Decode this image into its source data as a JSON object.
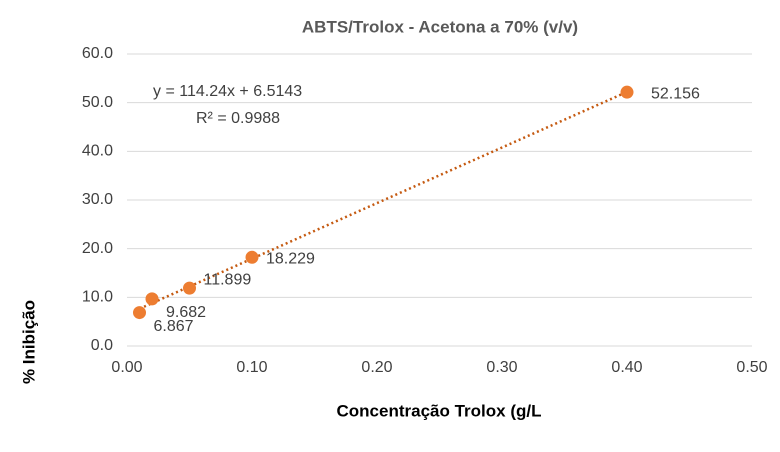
{
  "chart_data": {
    "type": "scatter",
    "title": "ABTS/Trolox - Acetona a 70% (v/v)",
    "x_label": "Concentração Trolox (g/L",
    "y_label": "% Inibição",
    "annotations": [
      "y = 114.24x + 6.5143",
      "R² = 0.9988"
    ],
    "series": [
      {
        "name": "ABTS/Trolox",
        "color": "#ed7d31",
        "x": [
          0.01,
          0.02,
          0.05,
          0.1,
          0.4
        ],
        "values": [
          6.867,
          9.682,
          11.899,
          18.229,
          52.156
        ]
      }
    ],
    "trendline_color": "#c55a11",
    "xlim": [
      0,
      0.5
    ],
    "xticks": [
      {
        "value": 0,
        "label": "0.00"
      },
      {
        "value": 0.1,
        "label": "0.10"
      },
      {
        "value": 0.2,
        "label": "0.20"
      },
      {
        "value": 0.3,
        "label": "0.30"
      },
      {
        "value": 0.4,
        "label": "0.40"
      },
      {
        "value": 0.5,
        "label": "0.50"
      }
    ],
    "ylim": [
      0,
      60
    ],
    "yticks": [
      {
        "value": 0,
        "label": "0.0"
      },
      {
        "value": 10,
        "label": "10.0"
      },
      {
        "value": 20,
        "label": "20.0"
      },
      {
        "value": 30,
        "label": "30.0"
      },
      {
        "value": 40,
        "label": "40.0"
      },
      {
        "value": 50,
        "label": "50.0"
      },
      {
        "value": 60,
        "label": "60.0"
      }
    ],
    "grid": true
  }
}
